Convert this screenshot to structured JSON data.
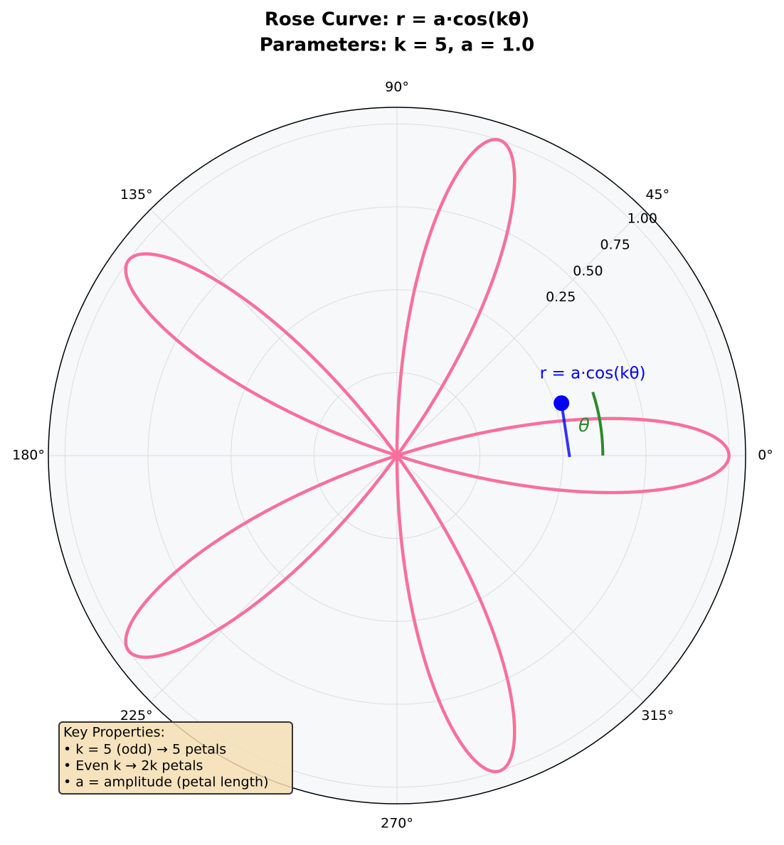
{
  "chart_data": {
    "type": "polar-rose",
    "title": "Rose Curve: r = a·cos(kθ)",
    "subtitle": "Parameters: k = 5, a = 1.0",
    "k": 5,
    "a": 1.0,
    "color": "#f7709c",
    "rlim": [
      0,
      1.05
    ],
    "rticks": [
      {
        "value": 0.25,
        "label": "0.25"
      },
      {
        "value": 0.5,
        "label": "0.50"
      },
      {
        "value": 0.75,
        "label": "0.75"
      },
      {
        "value": 1,
        "label": "1.00"
      }
    ],
    "thetaticks": [
      {
        "value": 0,
        "label": "0°"
      },
      {
        "value": 45,
        "label": "45°"
      },
      {
        "value": 90,
        "label": "90°"
      },
      {
        "value": 135,
        "label": "135°"
      },
      {
        "value": 180,
        "label": "180°"
      },
      {
        "value": 225,
        "label": "225°"
      },
      {
        "value": 270,
        "label": "270°"
      },
      {
        "value": 315,
        "label": "315°"
      }
    ],
    "grid": true,
    "marker": {
      "label": "r = a·cos(kθ)",
      "theta": 17.7,
      "r": 0.52,
      "color": "#0000ff"
    },
    "angle_arc": {
      "label": "θ",
      "r": 0.62,
      "theta": [
        0,
        18
      ],
      "color": "#2a8a2a"
    },
    "info_box": {
      "title": "Key Properties:",
      "lines": [
        "• k = 5 (odd) → 5 petals",
        "• Even k → 2k petals",
        "• a = amplitude (petal length)"
      ]
    }
  }
}
